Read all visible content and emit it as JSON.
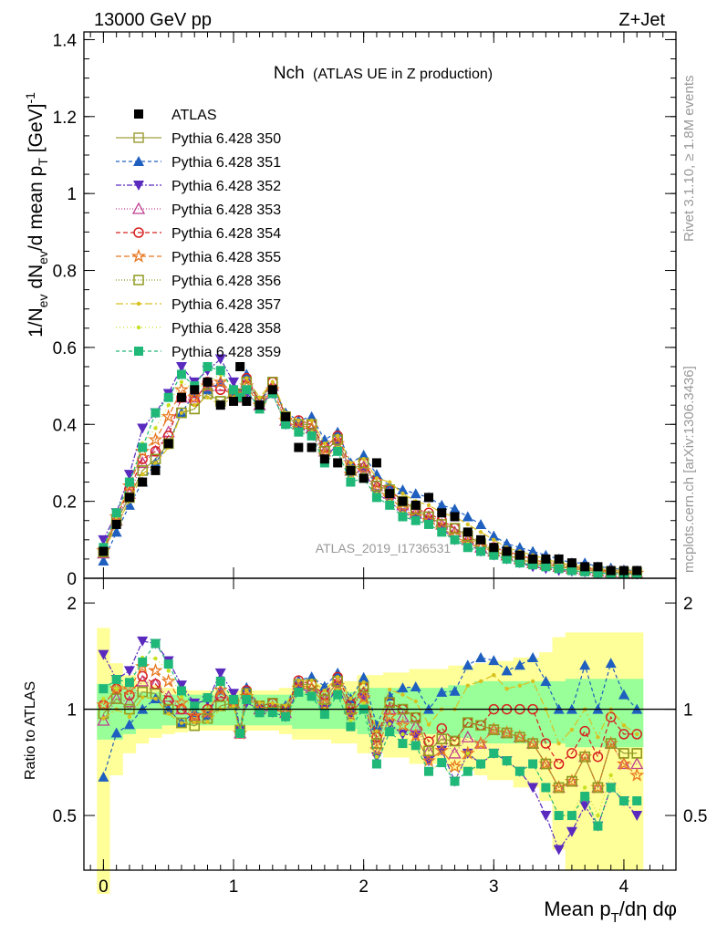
{
  "header": {
    "left": "13000 GeV pp",
    "right": "Z+Jet"
  },
  "side_text": {
    "rivet": "Rivet 3.1.10, ≥ 1.8M events",
    "mcplots": "mcplots.cern.ch [arXiv:1306.3436]"
  },
  "analysis_id": "ATLAS_2019_I1736531",
  "chart_data": [
    {
      "type": "line",
      "title_main": "Nch",
      "title_sub": "(ATLAS UE in Z production)",
      "ylabel": "1/N_ev dN_ev/d mean p_T [GeV]^-1",
      "xlim": [
        -0.15,
        4.4
      ],
      "ylim": [
        0,
        1.42
      ],
      "yticks": [
        "0",
        "0.2",
        "0.4",
        "0.6",
        "0.8",
        "1",
        "1.2",
        "1.4"
      ],
      "x": [
        0.0,
        0.1,
        0.2,
        0.3,
        0.4,
        0.5,
        0.6,
        0.7,
        0.8,
        0.9,
        1.0,
        1.05,
        1.1,
        1.2,
        1.3,
        1.4,
        1.5,
        1.6,
        1.7,
        1.8,
        1.9,
        2.0,
        2.1,
        2.2,
        2.3,
        2.4,
        2.5,
        2.6,
        2.7,
        2.8,
        2.9,
        3.0,
        3.1,
        3.2,
        3.3,
        3.4,
        3.5,
        3.6,
        3.7,
        3.8,
        3.9,
        4.0,
        4.1
      ],
      "data_series": {
        "name": "ATLAS",
        "values": [
          0.07,
          0.14,
          0.21,
          0.25,
          0.28,
          0.35,
          0.47,
          0.49,
          0.51,
          0.45,
          0.46,
          0.55,
          0.46,
          0.45,
          0.49,
          0.42,
          0.34,
          0.34,
          0.31,
          0.3,
          0.28,
          0.26,
          0.3,
          0.22,
          0.2,
          0.19,
          0.21,
          0.17,
          0.16,
          0.12,
          0.1,
          0.08,
          0.07,
          0.06,
          0.05,
          0.05,
          0.05,
          0.04,
          0.03,
          0.03,
          0.02,
          0.02,
          0.02
        ]
      },
      "series": [
        {
          "name": "Pythia 6.428 350",
          "color": "#a0a040",
          "marker": "square-open",
          "dash": "solid",
          "values": [
            0.068,
            0.15,
            0.21,
            0.28,
            0.31,
            0.35,
            0.43,
            0.44,
            0.48,
            0.46,
            0.48,
            0.48,
            0.51,
            0.46,
            0.51,
            0.42,
            0.4,
            0.4,
            0.33,
            0.36,
            0.28,
            0.3,
            0.24,
            0.23,
            0.2,
            0.18,
            0.16,
            0.14,
            0.13,
            0.11,
            0.09,
            0.07,
            0.06,
            0.05,
            0.04,
            0.035,
            0.03,
            0.025,
            0.022,
            0.018,
            0.016,
            0.015,
            0.015
          ]
        },
        {
          "name": "Pythia 6.428 351",
          "color": "#1f5fbf",
          "marker": "triangle-up",
          "dash": "4,3",
          "values": [
            0.045,
            0.12,
            0.19,
            0.25,
            0.3,
            0.35,
            0.43,
            0.48,
            0.49,
            0.51,
            0.48,
            0.48,
            0.53,
            0.46,
            0.5,
            0.43,
            0.41,
            0.42,
            0.36,
            0.38,
            0.3,
            0.32,
            0.27,
            0.24,
            0.23,
            0.22,
            0.21,
            0.19,
            0.18,
            0.16,
            0.14,
            0.11,
            0.09,
            0.08,
            0.07,
            0.06,
            0.05,
            0.04,
            0.04,
            0.03,
            0.027,
            0.022,
            0.02
          ]
        },
        {
          "name": "Pythia 6.428 352",
          "color": "#5a2abf",
          "marker": "triangle-down",
          "dash": "6,2,2,2",
          "values": [
            0.1,
            0.17,
            0.27,
            0.39,
            0.43,
            0.48,
            0.55,
            0.51,
            0.54,
            0.57,
            0.51,
            0.48,
            0.48,
            0.45,
            0.48,
            0.4,
            0.39,
            0.38,
            0.31,
            0.35,
            0.27,
            0.28,
            0.22,
            0.2,
            0.17,
            0.16,
            0.15,
            0.13,
            0.1,
            0.09,
            0.07,
            0.06,
            0.05,
            0.04,
            0.03,
            0.025,
            0.02,
            0.018,
            0.016,
            0.014,
            0.012,
            0.011,
            0.01
          ]
        },
        {
          "name": "Pythia 6.428 353",
          "color": "#bf3f8f",
          "marker": "triangle-up-open",
          "dash": "1,2",
          "values": [
            0.065,
            0.15,
            0.22,
            0.3,
            0.33,
            0.38,
            0.47,
            0.47,
            0.5,
            0.5,
            0.48,
            0.47,
            0.51,
            0.45,
            0.5,
            0.41,
            0.4,
            0.39,
            0.33,
            0.36,
            0.28,
            0.29,
            0.24,
            0.22,
            0.19,
            0.17,
            0.16,
            0.14,
            0.12,
            0.1,
            0.08,
            0.07,
            0.06,
            0.05,
            0.04,
            0.035,
            0.03,
            0.025,
            0.022,
            0.018,
            0.016,
            0.014,
            0.014
          ]
        },
        {
          "name": "Pythia 6.428 354",
          "color": "#d62020",
          "marker": "circle-open",
          "dash": "5,3",
          "values": [
            0.072,
            0.16,
            0.23,
            0.31,
            0.33,
            0.37,
            0.47,
            0.46,
            0.51,
            0.49,
            0.48,
            0.47,
            0.52,
            0.46,
            0.51,
            0.42,
            0.41,
            0.4,
            0.34,
            0.37,
            0.29,
            0.3,
            0.25,
            0.23,
            0.2,
            0.18,
            0.17,
            0.15,
            0.13,
            0.11,
            0.09,
            0.08,
            0.07,
            0.06,
            0.05,
            0.04,
            0.035,
            0.03,
            0.026,
            0.022,
            0.019,
            0.017,
            0.017
          ]
        },
        {
          "name": "Pythia 6.428 355",
          "color": "#e87820",
          "marker": "star-open",
          "dash": "6,3",
          "values": [
            0.072,
            0.16,
            0.24,
            0.33,
            0.36,
            0.42,
            0.49,
            0.47,
            0.5,
            0.51,
            0.48,
            0.47,
            0.5,
            0.45,
            0.49,
            0.41,
            0.39,
            0.39,
            0.32,
            0.35,
            0.27,
            0.28,
            0.23,
            0.21,
            0.18,
            0.16,
            0.15,
            0.13,
            0.11,
            0.09,
            0.08,
            0.07,
            0.06,
            0.05,
            0.04,
            0.035,
            0.03,
            0.025,
            0.022,
            0.018,
            0.016,
            0.014,
            0.013
          ]
        },
        {
          "name": "Pythia 6.428 356",
          "color": "#8f9a20",
          "marker": "square-open",
          "dash": "1,2",
          "values": [
            0.068,
            0.15,
            0.21,
            0.28,
            0.31,
            0.35,
            0.43,
            0.44,
            0.48,
            0.46,
            0.48,
            0.48,
            0.51,
            0.46,
            0.51,
            0.42,
            0.4,
            0.4,
            0.33,
            0.36,
            0.28,
            0.3,
            0.24,
            0.23,
            0.2,
            0.18,
            0.16,
            0.14,
            0.13,
            0.11,
            0.09,
            0.07,
            0.06,
            0.05,
            0.04,
            0.035,
            0.03,
            0.025,
            0.022,
            0.018,
            0.016,
            0.015,
            0.015
          ]
        },
        {
          "name": "Pythia 6.428 357",
          "color": "#d8c020",
          "marker": "dot",
          "dash": "8,3,2,3",
          "values": [
            0.066,
            0.14,
            0.2,
            0.27,
            0.3,
            0.34,
            0.43,
            0.45,
            0.47,
            0.45,
            0.47,
            0.47,
            0.52,
            0.47,
            0.51,
            0.43,
            0.41,
            0.41,
            0.35,
            0.37,
            0.3,
            0.31,
            0.26,
            0.25,
            0.22,
            0.2,
            0.19,
            0.17,
            0.16,
            0.14,
            0.12,
            0.1,
            0.08,
            0.07,
            0.06,
            0.05,
            0.04,
            0.035,
            0.03,
            0.025,
            0.02,
            0.018,
            0.017
          ]
        },
        {
          "name": "Pythia 6.428 358",
          "color": "#c8e020",
          "marker": "dot",
          "dash": "1,3",
          "values": [
            0.075,
            0.16,
            0.25,
            0.35,
            0.39,
            0.45,
            0.51,
            0.49,
            0.51,
            0.53,
            0.49,
            0.47,
            0.49,
            0.44,
            0.48,
            0.4,
            0.38,
            0.38,
            0.31,
            0.34,
            0.26,
            0.27,
            0.22,
            0.2,
            0.17,
            0.15,
            0.14,
            0.12,
            0.1,
            0.09,
            0.07,
            0.06,
            0.05,
            0.04,
            0.035,
            0.03,
            0.025,
            0.02,
            0.018,
            0.015,
            0.013,
            0.011,
            0.011
          ]
        },
        {
          "name": "Pythia 6.428 359",
          "color": "#20b878",
          "marker": "square",
          "dash": "4,3",
          "values": [
            0.08,
            0.17,
            0.25,
            0.34,
            0.43,
            0.47,
            0.53,
            0.5,
            0.55,
            0.54,
            0.49,
            0.47,
            0.49,
            0.44,
            0.48,
            0.4,
            0.38,
            0.37,
            0.3,
            0.33,
            0.25,
            0.26,
            0.21,
            0.19,
            0.16,
            0.15,
            0.14,
            0.12,
            0.1,
            0.08,
            0.07,
            0.06,
            0.05,
            0.04,
            0.035,
            0.03,
            0.025,
            0.02,
            0.017,
            0.014,
            0.012,
            0.011,
            0.011
          ]
        }
      ]
    },
    {
      "type": "line",
      "ylabel": "Ratio to ATLAS",
      "xlabel": "Mean p_T/dη dφ",
      "xlim": [
        -0.15,
        4.4
      ],
      "ylim": [
        0.35,
        2.35
      ],
      "yticks": [
        "0.5",
        "1",
        "2"
      ],
      "xticks": [
        "0",
        "1",
        "2",
        "3",
        "4"
      ],
      "reference_line": 1,
      "band_inner": [
        0.18,
        0.18,
        0.15,
        0.12,
        0.12,
        0.1,
        0.1,
        0.1,
        0.1,
        0.1,
        0.1,
        0.1,
        0.1,
        0.1,
        0.1,
        0.1,
        0.12,
        0.12,
        0.12,
        0.12,
        0.12,
        0.15,
        0.15,
        0.15,
        0.15,
        0.15,
        0.15,
        0.15,
        0.17,
        0.17,
        0.2,
        0.2,
        0.2,
        0.2,
        0.2,
        0.2,
        0.2,
        0.22,
        0.22,
        0.22,
        0.22,
        0.22,
        0.22
      ],
      "band_outer": [
        0.7,
        0.35,
        0.25,
        0.2,
        0.17,
        0.15,
        0.14,
        0.13,
        0.13,
        0.13,
        0.13,
        0.13,
        0.13,
        0.13,
        0.13,
        0.15,
        0.18,
        0.18,
        0.18,
        0.2,
        0.2,
        0.25,
        0.25,
        0.27,
        0.27,
        0.3,
        0.3,
        0.3,
        0.33,
        0.33,
        0.35,
        0.37,
        0.37,
        0.4,
        0.4,
        0.45,
        0.6,
        0.65,
        0.65,
        0.65,
        0.65,
        0.65,
        0.65
      ],
      "series_source": "ratio of each model series to ATLAS"
    }
  ]
}
